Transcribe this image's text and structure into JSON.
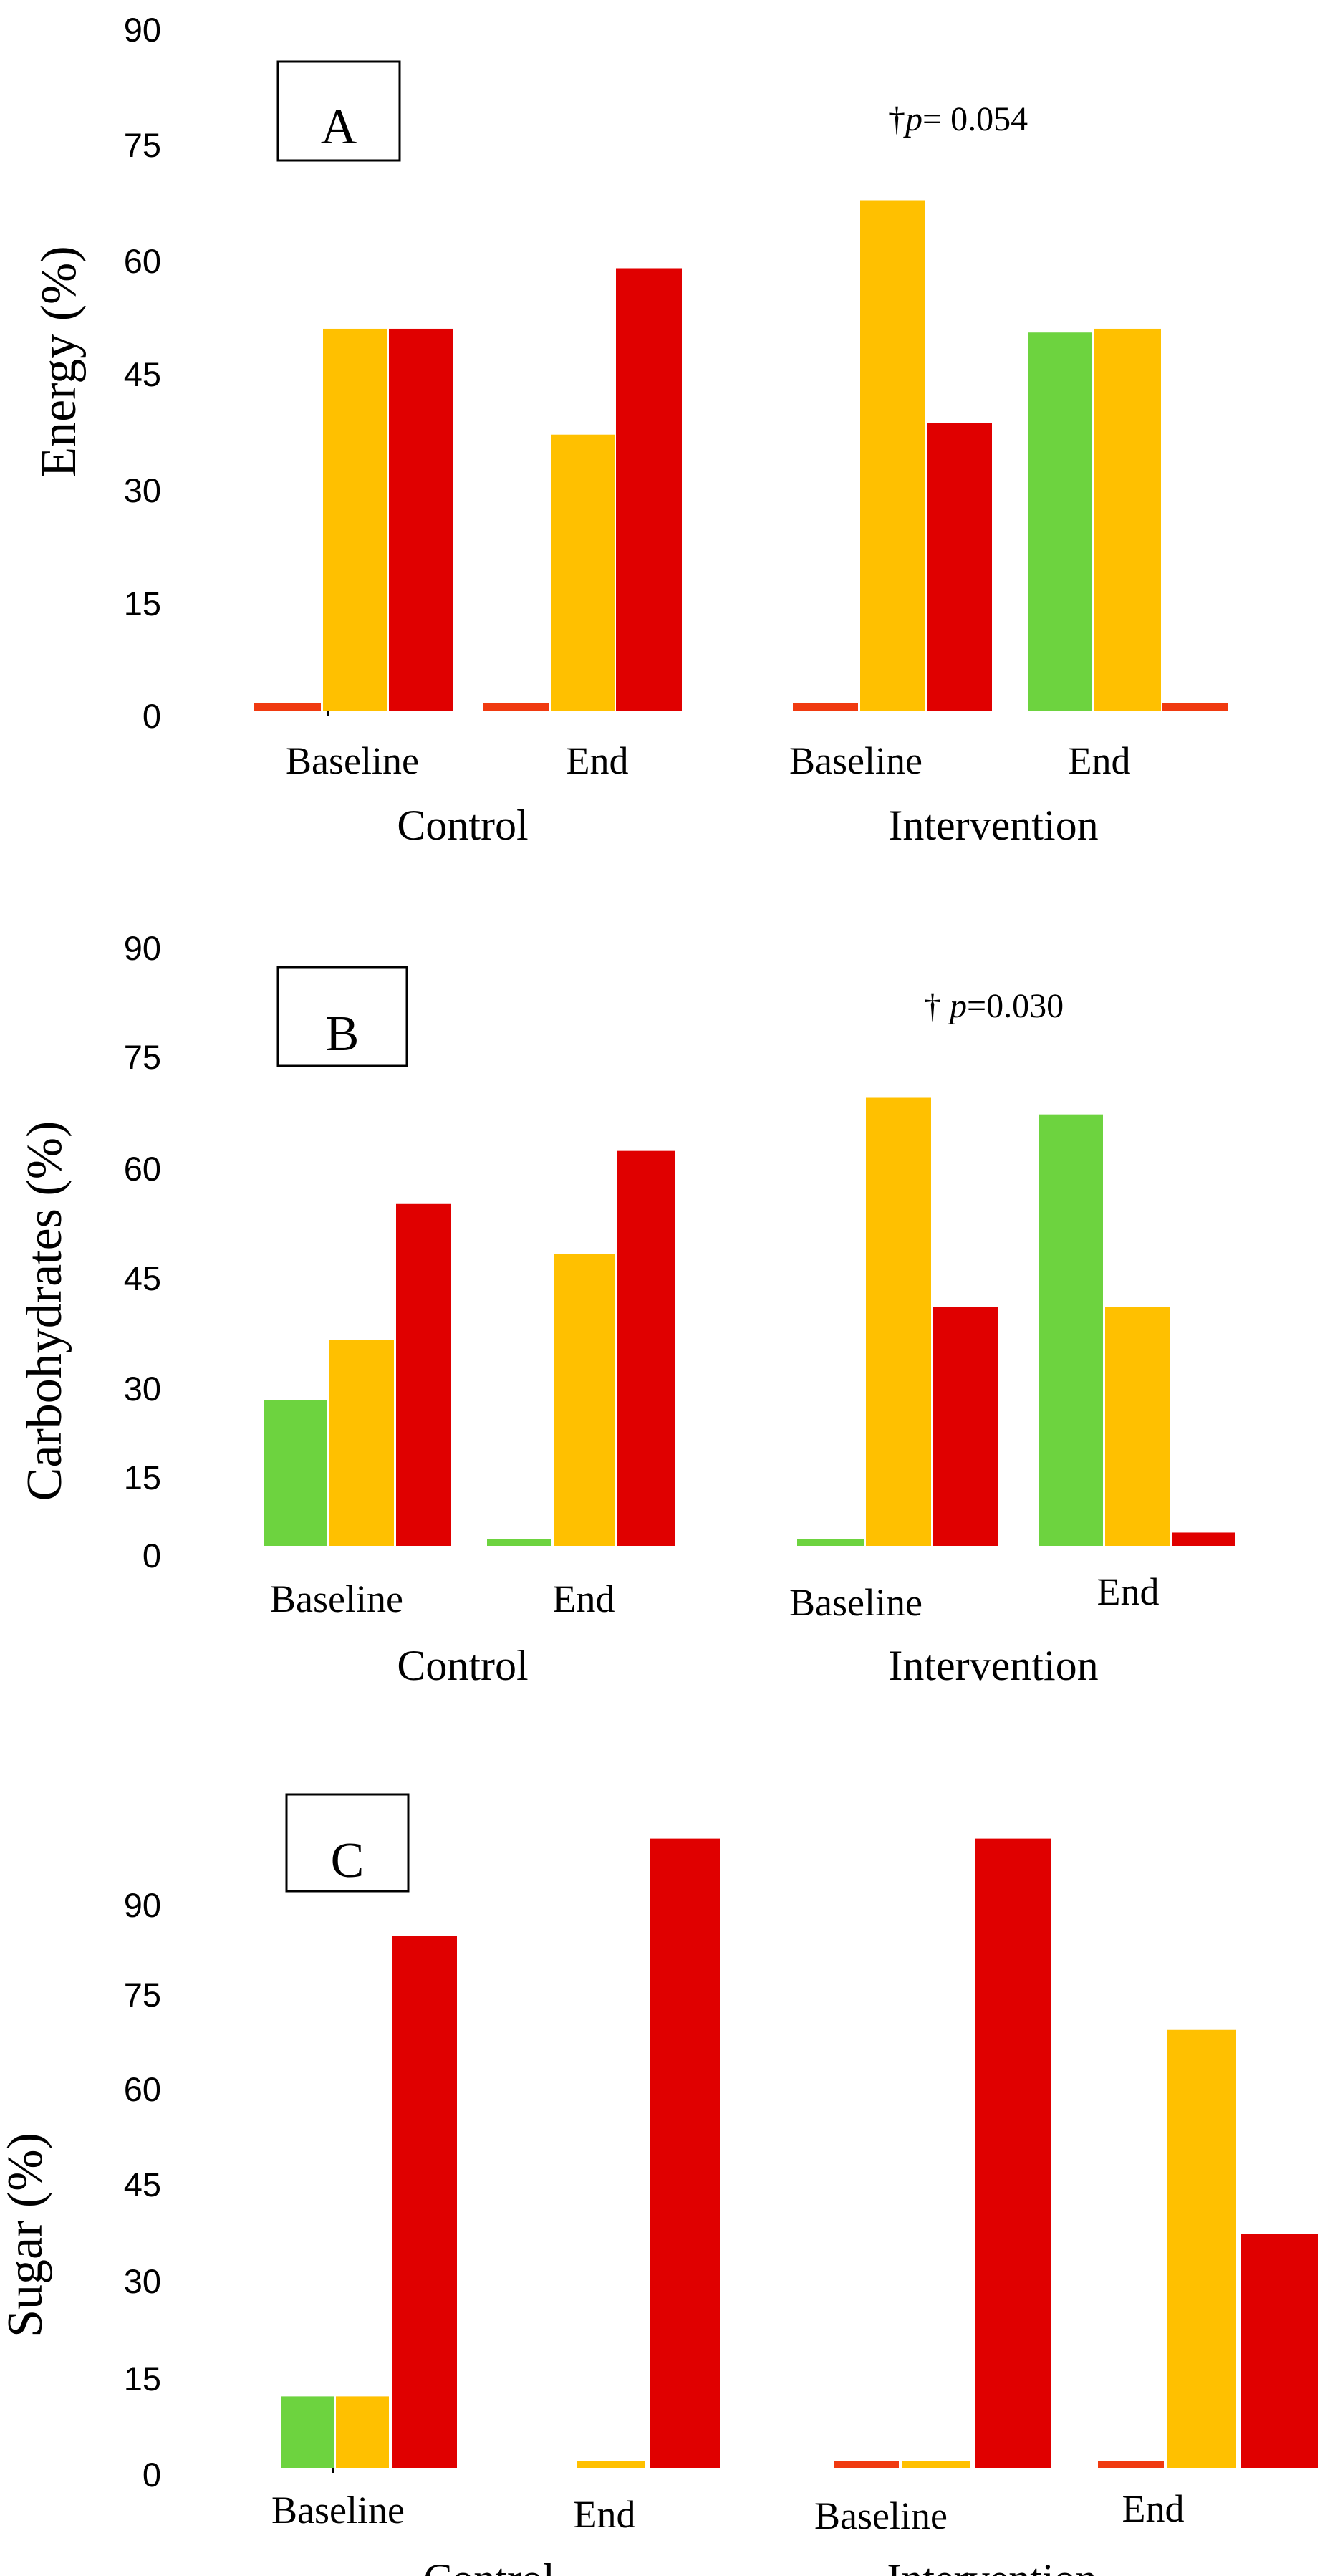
{
  "colors": {
    "green": "#6DD33F",
    "yellow": "#FFC000",
    "red": "#E00000",
    "orange": "#F03A10"
  },
  "chart_data": [
    {
      "type": "bar",
      "panel_label": "A",
      "ylabel": "Energy (%)",
      "ylim": [
        0,
        90
      ],
      "yticks": [
        "90",
        "75",
        "60",
        "45",
        "30",
        "15",
        "0"
      ],
      "groups": [
        "Control",
        "Intervention"
      ],
      "categories": [
        "Baseline",
        "End",
        "Baseline",
        "End"
      ],
      "series": [
        {
          "name": "green",
          "values": [
            1,
            1.5,
            1.5,
            50
          ]
        },
        {
          "name": "yellow",
          "values": [
            50.5,
            36.5,
            67.5,
            50.5
          ]
        },
        {
          "name": "red",
          "values": [
            50.5,
            58.5,
            38,
            2
          ]
        }
      ],
      "annotation": {
        "symbol": "†",
        "p": "p",
        "rest": "= 0.054"
      }
    },
    {
      "type": "bar",
      "panel_label": "B",
      "ylabel": "Carbohydrates (%)",
      "ylim": [
        0,
        90
      ],
      "yticks": [
        "90",
        "75",
        "60",
        "45",
        "30",
        "15",
        "0"
      ],
      "groups": [
        "Control",
        "Intervention"
      ],
      "categories": [
        "Baseline",
        "End",
        "Baseline",
        "End"
      ],
      "series": [
        {
          "name": "green",
          "values": [
            22,
            1,
            1,
            65
          ]
        },
        {
          "name": "yellow",
          "values": [
            31,
            44,
            67.5,
            36
          ]
        },
        {
          "name": "red",
          "values": [
            51.5,
            59.5,
            36,
            2
          ]
        }
      ],
      "annotation": {
        "symbol": "† ",
        "p": "p",
        "rest": "=0.030"
      }
    },
    {
      "type": "bar",
      "panel_label": "C",
      "ylabel": "Sugar (%)",
      "ylim": [
        0,
        90
      ],
      "yticks": [
        "90",
        "75",
        "60",
        "45",
        "30",
        "15",
        "0"
      ],
      "groups": [
        "Control",
        "Intervention"
      ],
      "categories": [
        "Baseline",
        "End",
        "Baseline",
        "End"
      ],
      "series": [
        {
          "name": "green",
          "values": [
            11,
            0,
            1,
            1
          ]
        },
        {
          "name": "yellow",
          "values": [
            11,
            1,
            1,
            67.5
          ]
        },
        {
          "name": "red",
          "values": [
            82,
            97,
            97,
            36
          ]
        }
      ]
    }
  ]
}
